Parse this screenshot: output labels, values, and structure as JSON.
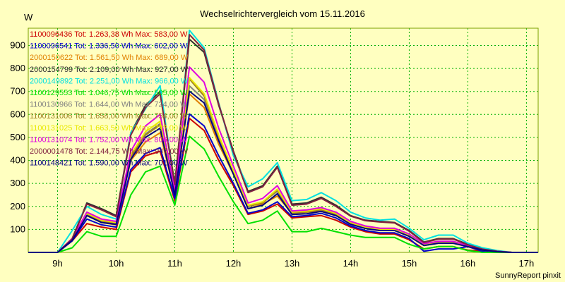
{
  "window": {
    "background": "#ffffc0",
    "plot_background": "#ffffc0",
    "grid_color": "#00b000",
    "credit": "SunnyReport pinxit"
  },
  "chart_data": {
    "type": "line",
    "title": "Wechselrichtervergleich vom 15.11.2016",
    "ylabel": "W",
    "xlabel": "",
    "ylim": [
      0,
      975
    ],
    "xlim": [
      8.5,
      17.2
    ],
    "grid": true,
    "legend_placement": "top-left",
    "y_ticks": [
      100,
      200,
      300,
      400,
      500,
      600,
      700,
      800,
      900
    ],
    "x_ticks": [
      {
        "value": 9,
        "label": "9h"
      },
      {
        "value": 10,
        "label": "10h"
      },
      {
        "value": 11,
        "label": "11h"
      },
      {
        "value": 12,
        "label": "12h"
      },
      {
        "value": 13,
        "label": "13h"
      },
      {
        "value": 14,
        "label": "14h"
      },
      {
        "value": 15,
        "label": "15h"
      },
      {
        "value": 16,
        "label": "16h"
      },
      {
        "value": 17,
        "label": "17h"
      }
    ],
    "x": [
      8.5,
      8.75,
      9.0,
      9.25,
      9.5,
      9.75,
      10.0,
      10.25,
      10.5,
      10.75,
      11.0,
      11.25,
      11.5,
      11.75,
      12.0,
      12.25,
      12.5,
      12.75,
      13.0,
      13.25,
      13.5,
      13.75,
      14.0,
      14.25,
      14.5,
      14.75,
      15.0,
      15.25,
      15.5,
      15.75,
      16.0,
      16.25,
      16.5,
      16.75,
      17.0,
      17.2
    ],
    "series": [
      {
        "name": "1100096436",
        "label": "1100096436 Tot: 1.263,38 Wh Max: 583,00 W",
        "color": "#cc0000",
        "values": [
          0,
          0,
          0,
          50,
          125,
          110,
          100,
          350,
          420,
          440,
          225,
          583,
          530,
          400,
          290,
          165,
          180,
          210,
          150,
          155,
          160,
          140,
          110,
          90,
          80,
          80,
          55,
          15,
          25,
          25,
          10,
          5,
          2,
          0,
          0,
          0
        ]
      },
      {
        "name": "1100096541",
        "label": "1100096541 Tot: 1.336,50 Wh Max: 602,00 W",
        "color": "#0000cc",
        "values": [
          0,
          0,
          0,
          50,
          145,
          120,
          110,
          360,
          430,
          455,
          235,
          602,
          550,
          420,
          300,
          170,
          185,
          220,
          155,
          160,
          170,
          150,
          115,
          95,
          85,
          85,
          60,
          5,
          15,
          15,
          25,
          5,
          0,
          0,
          0,
          0
        ]
      },
      {
        "name": "2000150622",
        "label": "2000150622 Tot: 1.561,50 Wh Max: 689,00 W",
        "color": "#e08000",
        "values": [
          0,
          0,
          0,
          55,
          160,
          130,
          120,
          400,
          480,
          520,
          255,
          689,
          630,
          470,
          340,
          190,
          210,
          245,
          170,
          175,
          180,
          160,
          125,
          105,
          95,
          95,
          70,
          30,
          40,
          40,
          25,
          10,
          3,
          0,
          0,
          0
        ]
      },
      {
        "name": "2000154799",
        "label": "2000154799 Tot: 2.109,00 Wh Max: 927,00 W",
        "color": "#303030",
        "values": [
          0,
          0,
          0,
          60,
          215,
          190,
          160,
          520,
          640,
          700,
          300,
          927,
          870,
          640,
          440,
          265,
          290,
          375,
          210,
          215,
          240,
          205,
          160,
          140,
          135,
          130,
          95,
          45,
          60,
          60,
          35,
          15,
          5,
          0,
          0,
          0
        ]
      },
      {
        "name": "2000149892",
        "label": "2000149892 Tot: 2.251,00 Wh Max: 966,00 W",
        "color": "#00e0e0",
        "values": [
          0,
          0,
          0,
          95,
          200,
          165,
          145,
          520,
          625,
          725,
          285,
          966,
          890,
          650,
          420,
          285,
          320,
          390,
          225,
          230,
          260,
          225,
          175,
          150,
          140,
          145,
          105,
          55,
          75,
          75,
          40,
          20,
          8,
          0,
          0,
          0
        ]
      },
      {
        "name": "1100129553",
        "label": "1100129553 Tot: 1.046,75 Wh Max: 505,00 W",
        "color": "#00e000",
        "values": [
          0,
          0,
          0,
          20,
          90,
          70,
          70,
          250,
          350,
          375,
          205,
          505,
          450,
          330,
          220,
          125,
          140,
          180,
          90,
          90,
          105,
          90,
          75,
          65,
          65,
          65,
          35,
          15,
          25,
          25,
          8,
          0,
          0,
          0,
          0,
          0
        ]
      },
      {
        "name": "1100130966",
        "label": "1100130966 Tot: 1.644,00 Wh Max: 724,00 W",
        "color": "#808080",
        "values": [
          0,
          0,
          0,
          55,
          170,
          140,
          130,
          420,
          515,
          560,
          265,
          724,
          665,
          500,
          355,
          200,
          220,
          265,
          175,
          180,
          190,
          170,
          130,
          110,
          100,
          100,
          75,
          35,
          45,
          45,
          28,
          12,
          4,
          0,
          0,
          0
        ]
      },
      {
        "name": "1100131006",
        "label": "1100131006 Tot: 1.658,00 Wh Max: 754,00 W",
        "color": "#a08020",
        "values": [
          0,
          0,
          0,
          55,
          165,
          135,
          125,
          415,
          510,
          555,
          260,
          754,
          680,
          505,
          350,
          200,
          215,
          270,
          170,
          175,
          185,
          165,
          128,
          108,
          98,
          98,
          73,
          33,
          43,
          43,
          27,
          11,
          4,
          0,
          0,
          0
        ]
      },
      {
        "name": "1100131025",
        "label": "1100131025 Tot: 1.663,50 Wh Max: ???,00 W",
        "color": "#e8e800",
        "values": [
          0,
          0,
          0,
          55,
          170,
          140,
          130,
          425,
          525,
          570,
          265,
          760,
          690,
          510,
          355,
          205,
          220,
          275,
          175,
          180,
          190,
          170,
          130,
          110,
          100,
          100,
          75,
          35,
          45,
          45,
          28,
          12,
          4,
          0,
          0,
          0
        ]
      },
      {
        "name": "1100131074",
        "label": "1100131074 Tot: 1.752,00 Wh Max: 806,00 W",
        "color": "#e000e0",
        "values": [
          0,
          0,
          0,
          60,
          175,
          145,
          135,
          440,
          550,
          600,
          270,
          806,
          740,
          540,
          375,
          215,
          235,
          290,
          180,
          185,
          195,
          175,
          135,
          115,
          105,
          105,
          80,
          38,
          48,
          48,
          30,
          13,
          5,
          0,
          0,
          0
        ]
      },
      {
        "name": "2000001478",
        "label": "2000001478 Tot: 2.144,75 Wh Max: 947,00 W",
        "color": "#802040",
        "values": [
          0,
          0,
          0,
          58,
          210,
          185,
          155,
          510,
          630,
          690,
          295,
          947,
          880,
          645,
          435,
          260,
          285,
          370,
          205,
          210,
          235,
          200,
          158,
          138,
          132,
          128,
          92,
          43,
          58,
          58,
          33,
          14,
          5,
          0,
          0,
          0
        ]
      },
      {
        "name": "1100148421",
        "label": "1100148421 Tot: 1.590,00 Wh Max: 701,00 W",
        "color": "#000080",
        "values": [
          0,
          0,
          0,
          52,
          160,
          130,
          122,
          405,
          500,
          540,
          250,
          701,
          650,
          485,
          340,
          190,
          205,
          255,
          165,
          168,
          178,
          160,
          122,
          104,
          95,
          95,
          70,
          30,
          40,
          40,
          25,
          10,
          3,
          0,
          0,
          0
        ]
      }
    ]
  }
}
